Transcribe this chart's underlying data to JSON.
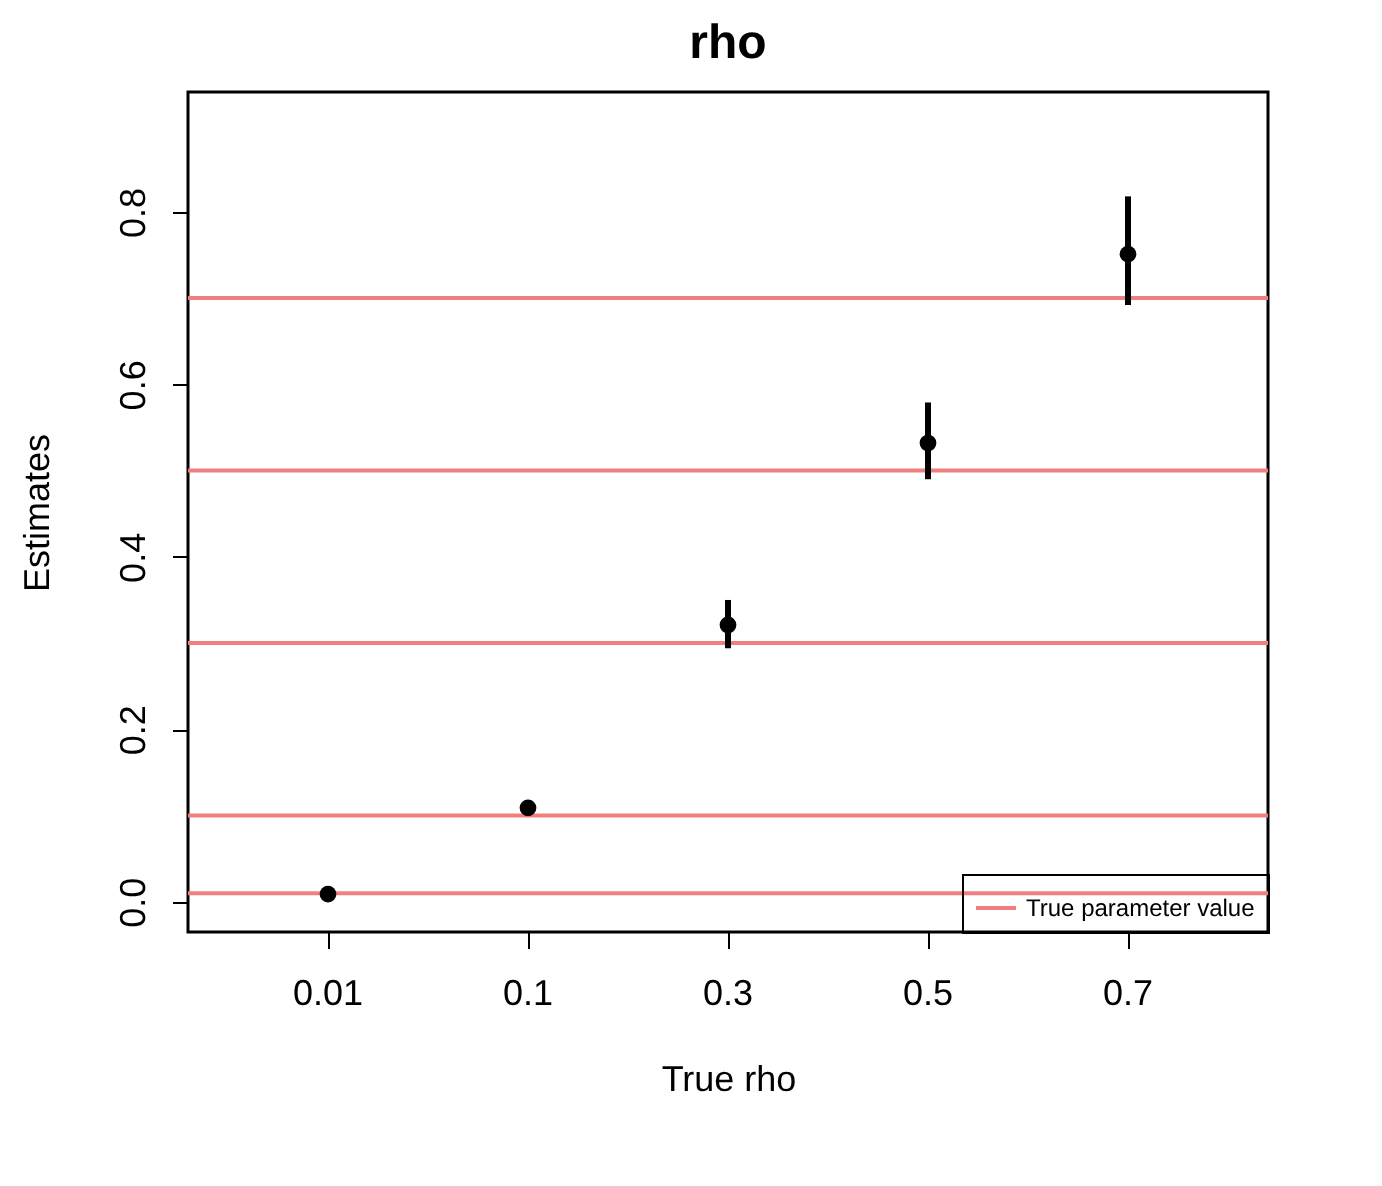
{
  "chart_data": {
    "type": "scatter",
    "title": "rho",
    "xlabel": "True rho",
    "ylabel": "Estimates",
    "categories": [
      "0.01",
      "0.1",
      "0.3",
      "0.5",
      "0.7"
    ],
    "series": [
      {
        "color": "#000000",
        "values": [
          0.009,
          0.109,
          0.321,
          0.532,
          0.751
        ],
        "errors": [
          null,
          [
            0.1,
            0.117
          ],
          [
            0.294,
            0.35
          ],
          [
            0.49,
            0.579
          ],
          [
            0.692,
            0.818
          ]
        ]
      }
    ],
    "ylim": [
      -0.035,
      0.939
    ],
    "yticks": [
      {
        "value": 0,
        "label": "0.0"
      },
      0.2,
      0.4,
      0.6,
      0.8
    ],
    "ref_lines": [
      {
        "axis": "y",
        "value": 0.01,
        "label": "True parameter value",
        "color": "#f08080"
      },
      {
        "axis": "y",
        "value": 0.1,
        "color": "#f08080"
      },
      {
        "axis": "y",
        "value": 0.3,
        "color": "#f08080"
      },
      {
        "axis": "y",
        "value": 0.5,
        "color": "#f08080"
      },
      {
        "axis": "y",
        "value": 0.7,
        "color": "#f08080"
      }
    ],
    "marker": "circle",
    "grid": false,
    "legend": "bottom right"
  }
}
